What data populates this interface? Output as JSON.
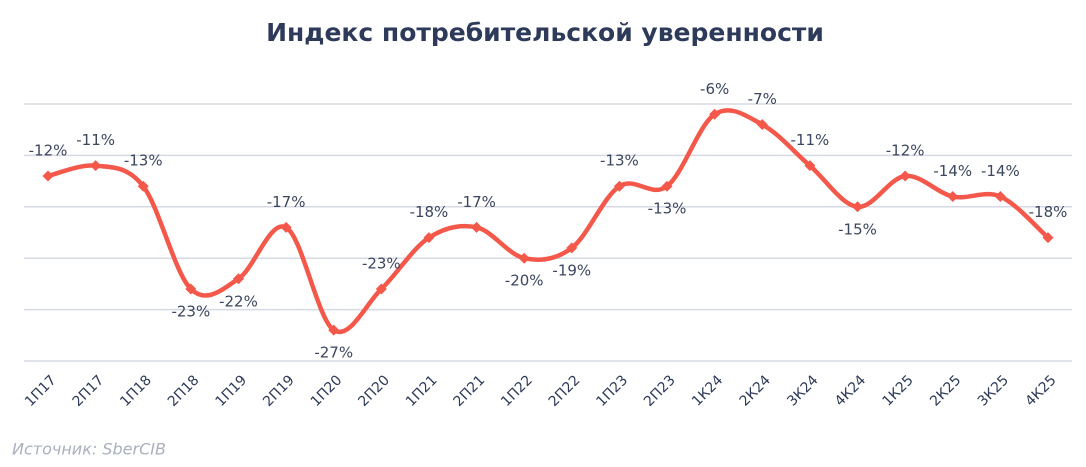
{
  "chart_data": {
    "type": "line",
    "title": "Индекс потребительской уверенности",
    "source": "Источник: SberCIB",
    "categories": [
      "1П17",
      "2П17",
      "1П18",
      "2П18",
      "1П19",
      "2П19",
      "1П20",
      "2П20",
      "1П21",
      "2П21",
      "1П22",
      "2П22",
      "1П23",
      "2П23",
      "1К24",
      "2К24",
      "3К24",
      "4К24",
      "1К25",
      "2К25",
      "3К25",
      "4К25"
    ],
    "values": [
      -12,
      -11,
      -13,
      -23,
      -22,
      -17,
      -27,
      -23,
      -18,
      -17,
      -20,
      -19,
      -13,
      -13,
      -6,
      -7,
      -11,
      -15,
      -12,
      -14,
      -14,
      -18
    ],
    "value_labels": [
      "-12%",
      "-11%",
      "-13%",
      "-23%",
      "-22%",
      "-17%",
      "-27%",
      "-23%",
      "-18%",
      "-17%",
      "-20%",
      "-19%",
      "-13%",
      "-13%",
      "-6%",
      "-7%",
      "-11%",
      "-15%",
      "-12%",
      "-14%",
      "-14%",
      "-18%"
    ],
    "color": "#f4584a",
    "ylim": [
      -30,
      -5
    ],
    "yticks": [
      -30,
      -25,
      -20,
      -15,
      -10,
      -5
    ],
    "grid": true
  }
}
